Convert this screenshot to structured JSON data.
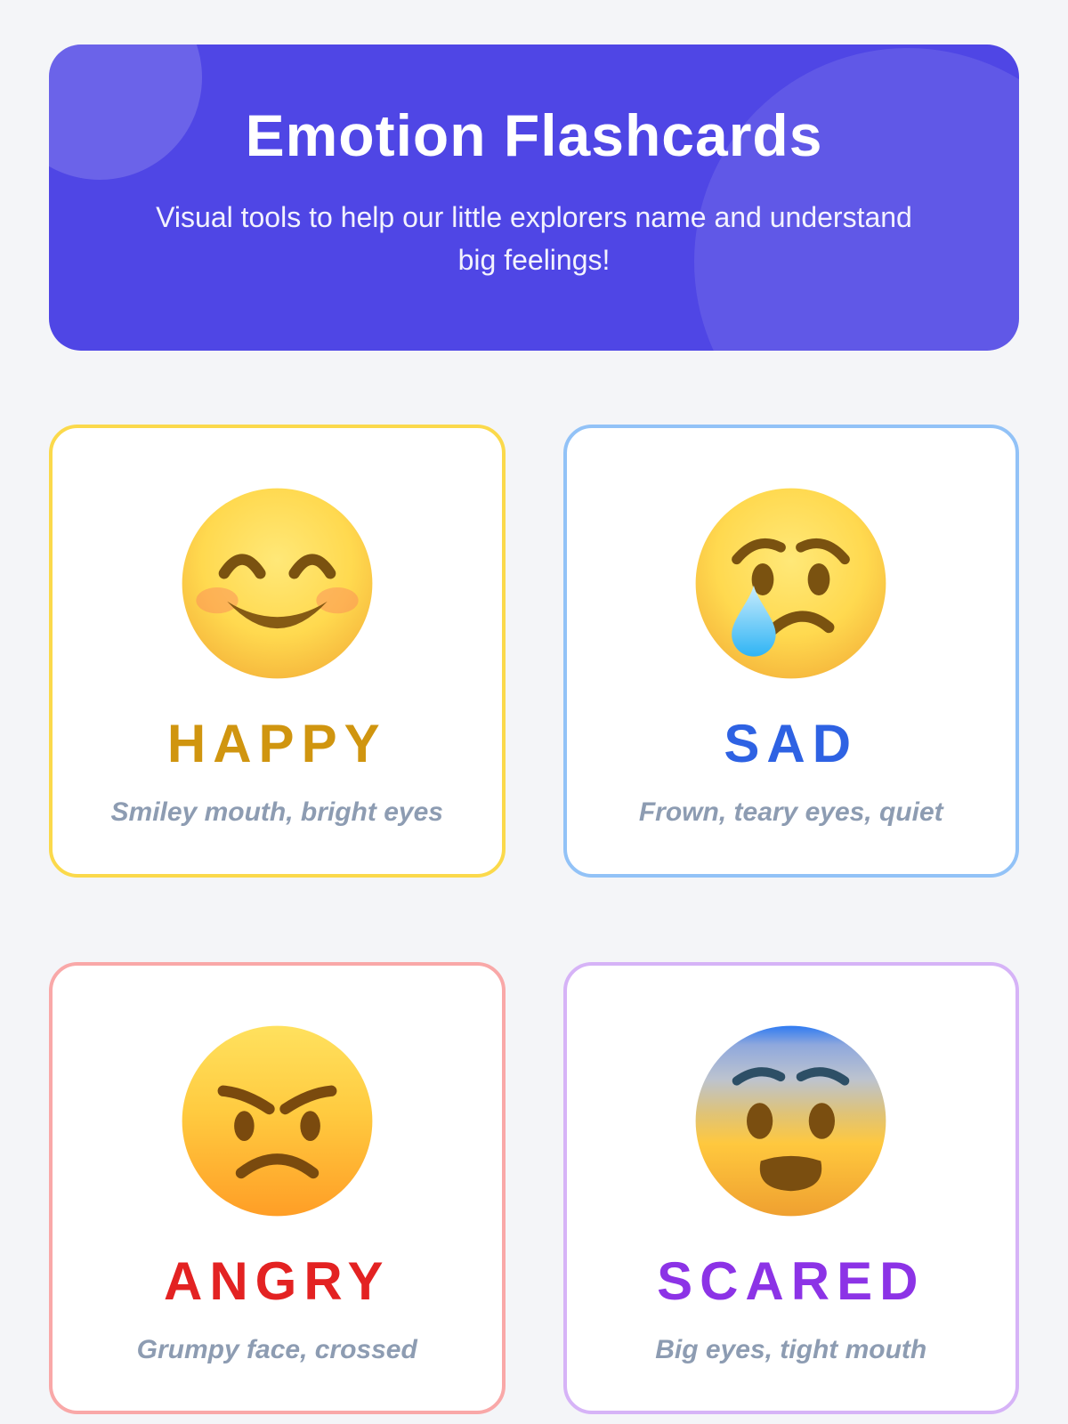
{
  "theme": {
    "accent": "#4f46e5",
    "background": "#f4f5f8",
    "card_background": "#ffffff",
    "description_color": "#8d9cb2",
    "header_text_color": "#ffffff"
  },
  "header": {
    "title": "Emotion Flashcards",
    "subtitle": "Visual tools to help our little explorers name and understand big feelings!"
  },
  "cards": [
    {
      "name": "HAPPY",
      "emoji": "smiling-face-with-smiling-eyes",
      "description": "Smiley mouth, bright eyes",
      "border_color": "#fbd94b",
      "title_color": "#d0950f"
    },
    {
      "name": "SAD",
      "emoji": "crying-face",
      "description": "Frown, teary eyes, quiet",
      "border_color": "#92c2f7",
      "title_color": "#2e62e3"
    },
    {
      "name": "ANGRY",
      "emoji": "angry-face",
      "description": "Grumpy face, crossed",
      "border_color": "#f9a8a8",
      "title_color": "#e32222"
    },
    {
      "name": "SCARED",
      "emoji": "fearful-face",
      "description": "Big eyes, tight mouth",
      "border_color": "#d6b3f7",
      "title_color": "#8c33e6"
    }
  ]
}
